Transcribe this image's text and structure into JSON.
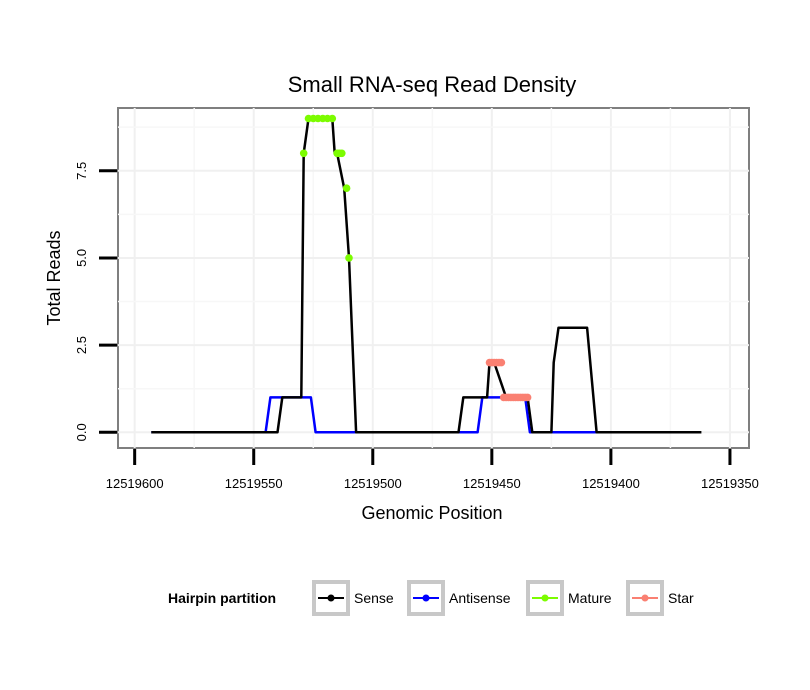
{
  "chart_data": {
    "type": "line",
    "title": "Small RNA-seq Read Density",
    "xlabel": "Genomic Position",
    "ylabel": "Total Reads",
    "xlim": [
      12519607,
      12519342
    ],
    "ylim": [
      -0.45,
      9.3
    ],
    "x_reversed": true,
    "xticks": [
      12519600,
      12519550,
      12519500,
      12519450,
      12519400,
      12519350
    ],
    "xtick_labels": [
      "12519600",
      "12519550",
      "12519500",
      "12519450",
      "12519400",
      "12519350"
    ],
    "yticks": [
      0,
      2.5,
      5,
      7.5
    ],
    "ytick_labels": [
      "0.0",
      "2.5",
      "5.0",
      "7.5"
    ],
    "grid": true,
    "legend": {
      "title": "Hairpin partition",
      "position": "bottom",
      "entries": [
        "Sense",
        "Antisense",
        "Mature",
        "Star"
      ]
    },
    "colors": {
      "Sense": "#000000",
      "Antisense": "#0000ff",
      "Mature": "#7cfc00",
      "Star": "#fa8072"
    },
    "series": [
      {
        "name": "Sense",
        "x": [
          12519593,
          12519540,
          12519538,
          12519530,
          12519529,
          12519527,
          12519517,
          12519516,
          12519515,
          12519512,
          12519510,
          12519507,
          12519504,
          12519502,
          12519500,
          12519464,
          12519462,
          12519452,
          12519451,
          12519449,
          12519444,
          12519442,
          12519435,
          12519433,
          12519425,
          12519424,
          12519422,
          12519410,
          12519406,
          12519405,
          12519365,
          12519362
        ],
        "y": [
          0,
          0,
          1,
          1,
          8,
          9,
          9,
          8,
          8,
          7,
          5,
          0,
          0,
          0,
          0,
          0,
          1,
          1,
          2,
          2,
          1,
          1,
          1,
          0,
          0,
          2,
          3,
          3,
          0,
          0,
          0,
          0
        ]
      },
      {
        "name": "Antisense",
        "x": [
          12519593,
          12519545,
          12519543,
          12519526,
          12519524,
          12519500,
          12519456,
          12519454,
          12519436,
          12519434,
          12519404,
          12519370
        ],
        "y": [
          0,
          0,
          1,
          1,
          0,
          0,
          0,
          1,
          1,
          0,
          0,
          0
        ]
      },
      {
        "name": "Mature",
        "x": [
          12519529,
          12519527,
          12519525,
          12519523,
          12519521,
          12519519,
          12519517,
          12519515,
          12519514,
          12519513,
          12519511,
          12519510
        ],
        "y": [
          8,
          9,
          9,
          9,
          9,
          9,
          9,
          8,
          8,
          8,
          7,
          5
        ]
      },
      {
        "name": "Star",
        "x": [
          12519451,
          12519450,
          12519449,
          12519448,
          12519447,
          12519446,
          12519445,
          12519444,
          12519443,
          12519442,
          12519441,
          12519440,
          12519439,
          12519438,
          12519437,
          12519436,
          12519435
        ],
        "y": [
          2,
          2,
          2,
          2,
          2,
          2,
          1,
          1,
          1,
          1,
          1,
          1,
          1,
          1,
          1,
          1,
          1
        ]
      }
    ]
  }
}
